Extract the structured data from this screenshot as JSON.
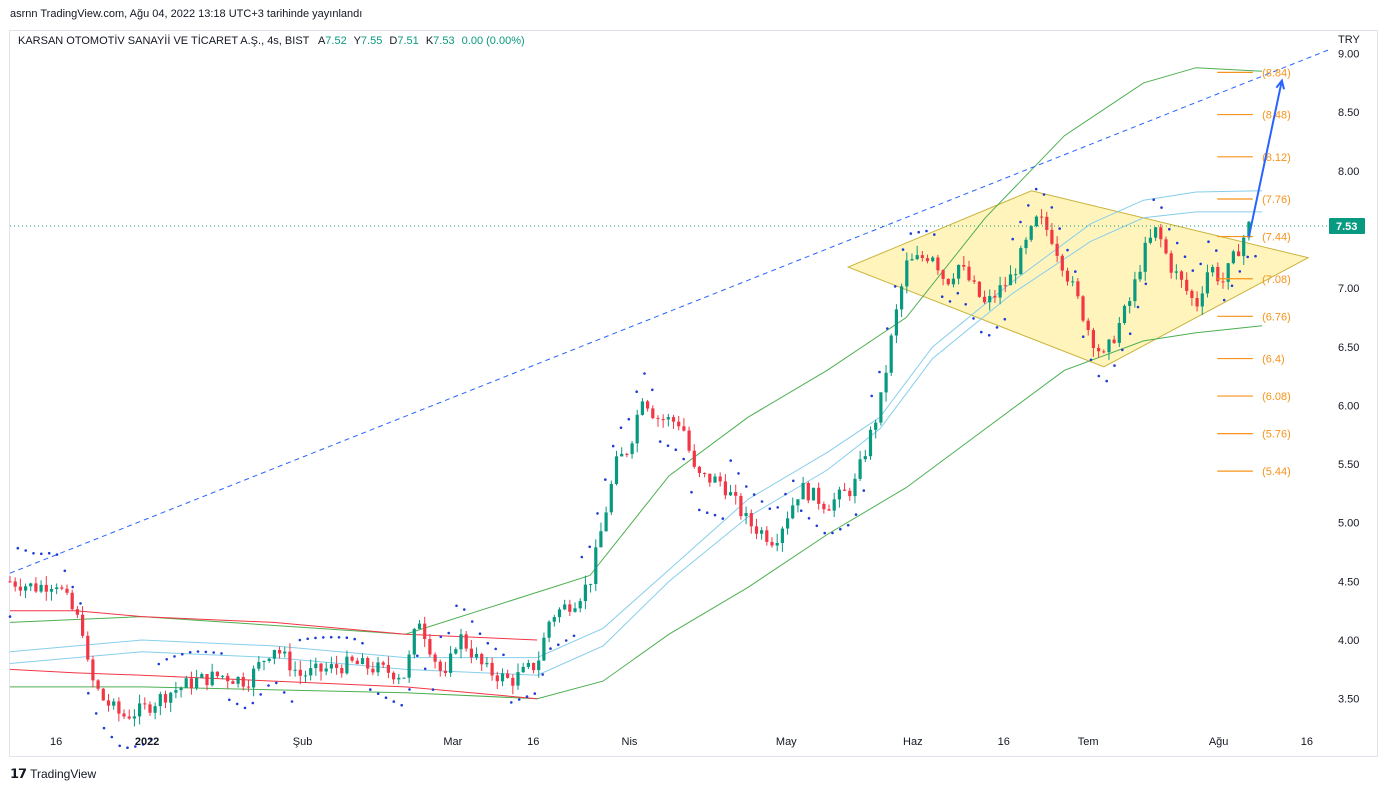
{
  "header": {
    "publisher": "asrnn TradingView.com, Ağu 04, 2022 13:18 UTC+3 tarihinde yayınlandı"
  },
  "legend": {
    "symbol": "KARSAN OTOMOTİV SANAYİİ VE TİCARET A.Ş., 4s, BIST",
    "open_label": "A",
    "open": "7.52",
    "high_label": "Y",
    "high": "7.55",
    "low_label": "D",
    "low": "7.51",
    "close_label": "K",
    "close": "7.53",
    "change": "0.00 (0.00%)"
  },
  "currency": "TRY",
  "footer": {
    "brand": "TradingView"
  },
  "colors": {
    "up": "#089981",
    "down": "#f23645",
    "psar": "#1e3cd6",
    "green_band": "#4caf50",
    "blue_band": "#87ceeb",
    "red_band": "#f23645",
    "trend": "#2962ff",
    "fib": "#f7931a",
    "diamond_fill": "#fff3b0"
  },
  "chart_data": {
    "type": "candlestick",
    "y_axis": {
      "ticks": [
        "3.50",
        "4.00",
        "4.50",
        "5.00",
        "5.50",
        "6.00",
        "6.50",
        "7.00",
        "7.50",
        "8.00",
        "8.50",
        "9.00"
      ],
      "ylim": [
        3.25,
        9.15
      ]
    },
    "x_axis": {
      "ticks": [
        "16",
        "2022",
        "Şub",
        "Mar",
        "16",
        "Nis",
        "May",
        "Haz",
        "16",
        "Tem",
        "Ağu",
        "16"
      ]
    },
    "last_price": "7.53",
    "fib_levels": [
      "(8.84)",
      "(8.48)",
      "(8.12)",
      "(7.76)",
      "(7.44)",
      "(7.08)",
      "(6.76)",
      "(6.4)",
      "(6.08)",
      "(5.76)",
      "(5.44)"
    ],
    "fib_values": [
      8.84,
      8.48,
      8.12,
      7.76,
      7.44,
      7.08,
      6.76,
      6.4,
      6.08,
      5.76,
      5.44
    ],
    "price_path": [
      [
        0,
        4.5
      ],
      [
        0.02,
        4.45
      ],
      [
        0.035,
        4.5
      ],
      [
        0.045,
        4.3
      ],
      [
        0.055,
        4.1
      ],
      [
        0.06,
        3.7
      ],
      [
        0.07,
        3.5
      ],
      [
        0.085,
        3.35
      ],
      [
        0.1,
        3.4
      ],
      [
        0.12,
        3.55
      ],
      [
        0.14,
        3.65
      ],
      [
        0.16,
        3.7
      ],
      [
        0.18,
        3.65
      ],
      [
        0.2,
        3.95
      ],
      [
        0.22,
        3.7
      ],
      [
        0.24,
        3.75
      ],
      [
        0.26,
        3.8
      ],
      [
        0.28,
        3.75
      ],
      [
        0.3,
        3.7
      ],
      [
        0.31,
        4.2
      ],
      [
        0.32,
        3.9
      ],
      [
        0.33,
        3.65
      ],
      [
        0.34,
        4.05
      ],
      [
        0.36,
        3.75
      ],
      [
        0.38,
        3.65
      ],
      [
        0.4,
        3.8
      ],
      [
        0.41,
        4.2
      ],
      [
        0.43,
        4.35
      ],
      [
        0.44,
        4.5
      ],
      [
        0.45,
        5.0
      ],
      [
        0.46,
        5.5
      ],
      [
        0.47,
        5.65
      ],
      [
        0.48,
        6.1
      ],
      [
        0.49,
        5.9
      ],
      [
        0.51,
        5.85
      ],
      [
        0.52,
        5.4
      ],
      [
        0.54,
        5.35
      ],
      [
        0.56,
        5.0
      ],
      [
        0.58,
        4.85
      ],
      [
        0.6,
        5.3
      ],
      [
        0.62,
        5.15
      ],
      [
        0.64,
        5.3
      ],
      [
        0.66,
        6.0
      ],
      [
        0.67,
        6.65
      ],
      [
        0.68,
        7.2
      ],
      [
        0.7,
        7.3
      ],
      [
        0.71,
        7.05
      ],
      [
        0.72,
        7.2
      ],
      [
        0.74,
        6.85
      ],
      [
        0.76,
        7.1
      ],
      [
        0.78,
        7.6
      ],
      [
        0.79,
        7.45
      ],
      [
        0.81,
        6.9
      ],
      [
        0.82,
        6.6
      ],
      [
        0.83,
        6.4
      ],
      [
        0.85,
        6.9
      ],
      [
        0.86,
        7.3
      ],
      [
        0.87,
        7.5
      ],
      [
        0.88,
        7.2
      ],
      [
        0.9,
        6.85
      ],
      [
        0.91,
        7.2
      ],
      [
        0.92,
        7.05
      ],
      [
        0.94,
        7.53
      ]
    ],
    "green_upper": [
      [
        0,
        4.15
      ],
      [
        0.1,
        4.2
      ],
      [
        0.3,
        4.05
      ],
      [
        0.44,
        4.55
      ],
      [
        0.5,
        5.4
      ],
      [
        0.56,
        5.9
      ],
      [
        0.62,
        6.3
      ],
      [
        0.68,
        6.75
      ],
      [
        0.74,
        7.6
      ],
      [
        0.8,
        8.3
      ],
      [
        0.86,
        8.75
      ],
      [
        0.9,
        8.88
      ],
      [
        0.95,
        8.85
      ]
    ],
    "green_lower": [
      [
        0,
        3.6
      ],
      [
        0.1,
        3.6
      ],
      [
        0.3,
        3.55
      ],
      [
        0.4,
        3.5
      ],
      [
        0.45,
        3.65
      ],
      [
        0.5,
        4.05
      ],
      [
        0.56,
        4.45
      ],
      [
        0.62,
        4.9
      ],
      [
        0.68,
        5.3
      ],
      [
        0.74,
        5.8
      ],
      [
        0.8,
        6.3
      ],
      [
        0.86,
        6.55
      ],
      [
        0.9,
        6.62
      ],
      [
        0.95,
        6.68
      ]
    ],
    "blue_upper": [
      [
        0,
        3.9
      ],
      [
        0.1,
        4.0
      ],
      [
        0.2,
        3.95
      ],
      [
        0.3,
        3.85
      ],
      [
        0.4,
        3.85
      ],
      [
        0.45,
        4.1
      ],
      [
        0.5,
        4.6
      ],
      [
        0.56,
        5.2
      ],
      [
        0.62,
        5.6
      ],
      [
        0.66,
        5.9
      ],
      [
        0.7,
        6.5
      ],
      [
        0.76,
        7.05
      ],
      [
        0.82,
        7.55
      ],
      [
        0.86,
        7.75
      ],
      [
        0.9,
        7.82
      ],
      [
        0.95,
        7.83
      ]
    ],
    "blue_lower": [
      [
        0,
        3.8
      ],
      [
        0.1,
        3.9
      ],
      [
        0.2,
        3.85
      ],
      [
        0.3,
        3.75
      ],
      [
        0.4,
        3.7
      ],
      [
        0.45,
        3.95
      ],
      [
        0.5,
        4.5
      ],
      [
        0.56,
        5.05
      ],
      [
        0.62,
        5.45
      ],
      [
        0.66,
        5.8
      ],
      [
        0.7,
        6.4
      ],
      [
        0.76,
        6.95
      ],
      [
        0.82,
        7.4
      ],
      [
        0.86,
        7.6
      ],
      [
        0.9,
        7.65
      ],
      [
        0.95,
        7.65
      ]
    ],
    "red_upper": [
      [
        0,
        4.25
      ],
      [
        0.05,
        4.25
      ],
      [
        0.1,
        4.2
      ],
      [
        0.2,
        4.15
      ],
      [
        0.3,
        4.05
      ],
      [
        0.4,
        4.0
      ]
    ],
    "red_lower": [
      [
        0,
        3.75
      ],
      [
        0.05,
        3.72
      ],
      [
        0.1,
        3.7
      ],
      [
        0.2,
        3.65
      ],
      [
        0.3,
        3.6
      ],
      [
        0.4,
        3.5
      ]
    ],
    "trend_line": [
      [
        0,
        4.57
      ],
      [
        1,
        9.03
      ]
    ],
    "diamond": [
      [
        0.636,
        7.18
      ],
      [
        0.775,
        7.83
      ],
      [
        0.985,
        7.26
      ],
      [
        0.83,
        6.33
      ]
    ],
    "arrow": [
      [
        0.94,
        7.44
      ],
      [
        0.965,
        8.77
      ]
    ]
  }
}
